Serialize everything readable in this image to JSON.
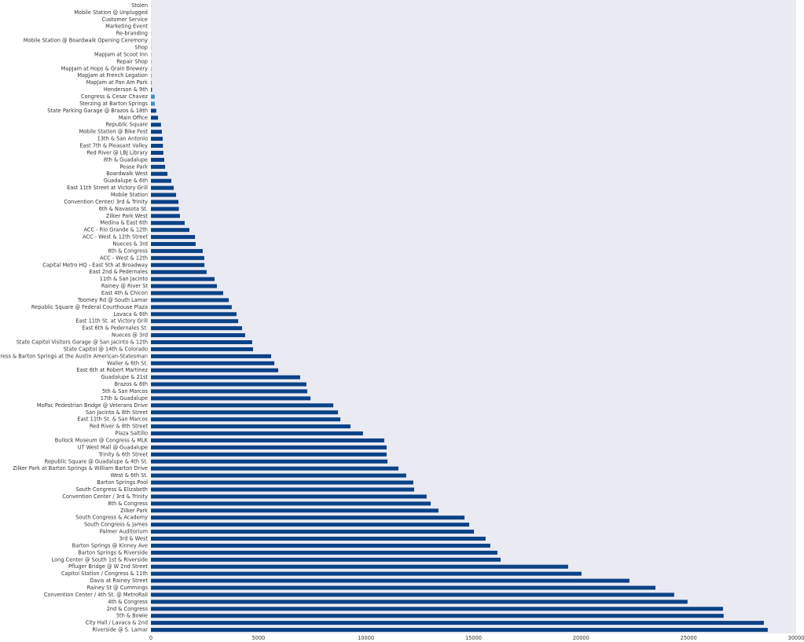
{
  "chart_data": {
    "type": "barh",
    "categories": [
      "Stolen",
      "Mobile Station @ Unplugged",
      "Customer Service",
      "Marketing Event",
      "Re-branding",
      "Mobile Station @ Boardwalk Opening Ceremony",
      "Shop",
      "MapJam at Scoot Inn",
      "Repair Shop",
      "MapJam at Hops & Grain Brewery",
      "MapJam at French Legation",
      "MapJam at Pan Am Park",
      "Henderson & 9th",
      "Congress & Cesar Chavez",
      "Sterzing at Barton Springs",
      "State Parking Garage @ Brazos & 18th",
      "Main Office",
      "Republic Square",
      "Mobile Station @ Bike Fest",
      "13th & San Antonio",
      "East 7th & Pleasant Valley",
      "Red River @ LBJ Library",
      "8th & Guadalupe",
      "Pease Park",
      "Boardwalk West",
      "Guadalupe & 6th",
      "East 11th Street at Victory Grill",
      "Mobile Station",
      "Convention Center/ 3rd & Trinity",
      "6th & Navasota St.",
      "Zilker Park West",
      "Medina & East 6th",
      "ACC - Rio Grande & 12th",
      "ACC - West & 12th Street",
      "Nueces & 3rd",
      "8th & Congress",
      "ACC - West & 12th",
      "Capital Metro HQ - East 5th at Broadway",
      "East 2nd & Pedernales",
      "11th & San Jacinto",
      "Rainey @ River St",
      "East 4th & Chicon",
      "Toomey Rd @ South Lamar",
      "Republic Square @ Federal Courthouse Plaza",
      "Lavaca & 6th",
      "East 11th St. at Victory Grill",
      "East 6th & Pedernales St.",
      "Nueces @ 3rd",
      "State Capitol Visitors Garage @ San Jacinto & 12th",
      "State Capitol @ 14th & Colorado",
      "South Congress & Barton Springs at the Austin American-Statesman",
      "Waller & 6th St.",
      "East 6th at Robert Martinez",
      "Guadalupe & 21st",
      "Brazos & 6th",
      "5th & San Marcos",
      "17th & Guadalupe",
      "MoPac Pedestrian Bridge @ Veterans Drive",
      "San Jacinto & 8th Street",
      "East 11th St. & San Marcos",
      "Red River & 8th Street",
      "Plaza Saltillo",
      "Bullock Museum @ Congress & MLK",
      "UT West Mall @ Guadalupe",
      "Trinity & 6th Street",
      "Republic Square @ Guadalupe & 4th St.",
      "Zilker Park at Barton Springs & William Barton Drive",
      "West & 6th St.",
      "Barton Springs Pool",
      "South Congress & Elizabeth",
      "Convention Center / 3rd & Trinity",
      "8th & Congress",
      "Zilker Park",
      "South Congress & Academy",
      "South Congress & James",
      "Palmer Auditorium",
      "3rd & West",
      "Barton Springs @ Kinney Ave",
      "Barton Springs & Riverside",
      "Long Center @ South 1st & Riverside",
      "Pfluger Bridge @ W 2nd Street",
      "Capitol Station / Congress & 11th",
      "Davis at Rainey Street",
      "Rainey St @ Cummings",
      "Convention Center / 4th St. @ MetroRail",
      "4th & Congress",
      "2nd & Congress",
      "5th & Bowie",
      "City Hall / Lavaca & 2nd",
      "Riverside @ S. Lamar"
    ],
    "values": [
      1,
      1,
      2,
      2,
      3,
      4,
      5,
      8,
      10,
      12,
      15,
      20,
      50,
      180,
      180,
      250,
      330,
      470,
      510,
      550,
      560,
      580,
      620,
      660,
      770,
      950,
      1060,
      1170,
      1280,
      1300,
      1350,
      1570,
      1790,
      2050,
      2080,
      2410,
      2480,
      2490,
      2590,
      2960,
      3070,
      3360,
      3620,
      3760,
      3980,
      4060,
      4240,
      4380,
      4710,
      4750,
      5590,
      5740,
      5920,
      6940,
      7230,
      7270,
      7420,
      8480,
      8700,
      8810,
      9280,
      9860,
      10850,
      10960,
      10960,
      11000,
      11510,
      11870,
      12200,
      12240,
      12820,
      13010,
      13370,
      14580,
      14800,
      15020,
      15560,
      15780,
      16110,
      16260,
      19400,
      20020,
      22250,
      23460,
      24330,
      24950,
      26600,
      26630,
      28500,
      28680
    ],
    "color": "#0b4286",
    "highlight_color": "#3a8fc8",
    "highlight": [
      "Congress & Cesar Chavez",
      "Sterzing at Barton Springs"
    ],
    "xlim": [
      0,
      30000
    ],
    "xticks": [
      0,
      5000,
      10000,
      15000,
      20000,
      25000,
      30000
    ],
    "grid": false
  }
}
